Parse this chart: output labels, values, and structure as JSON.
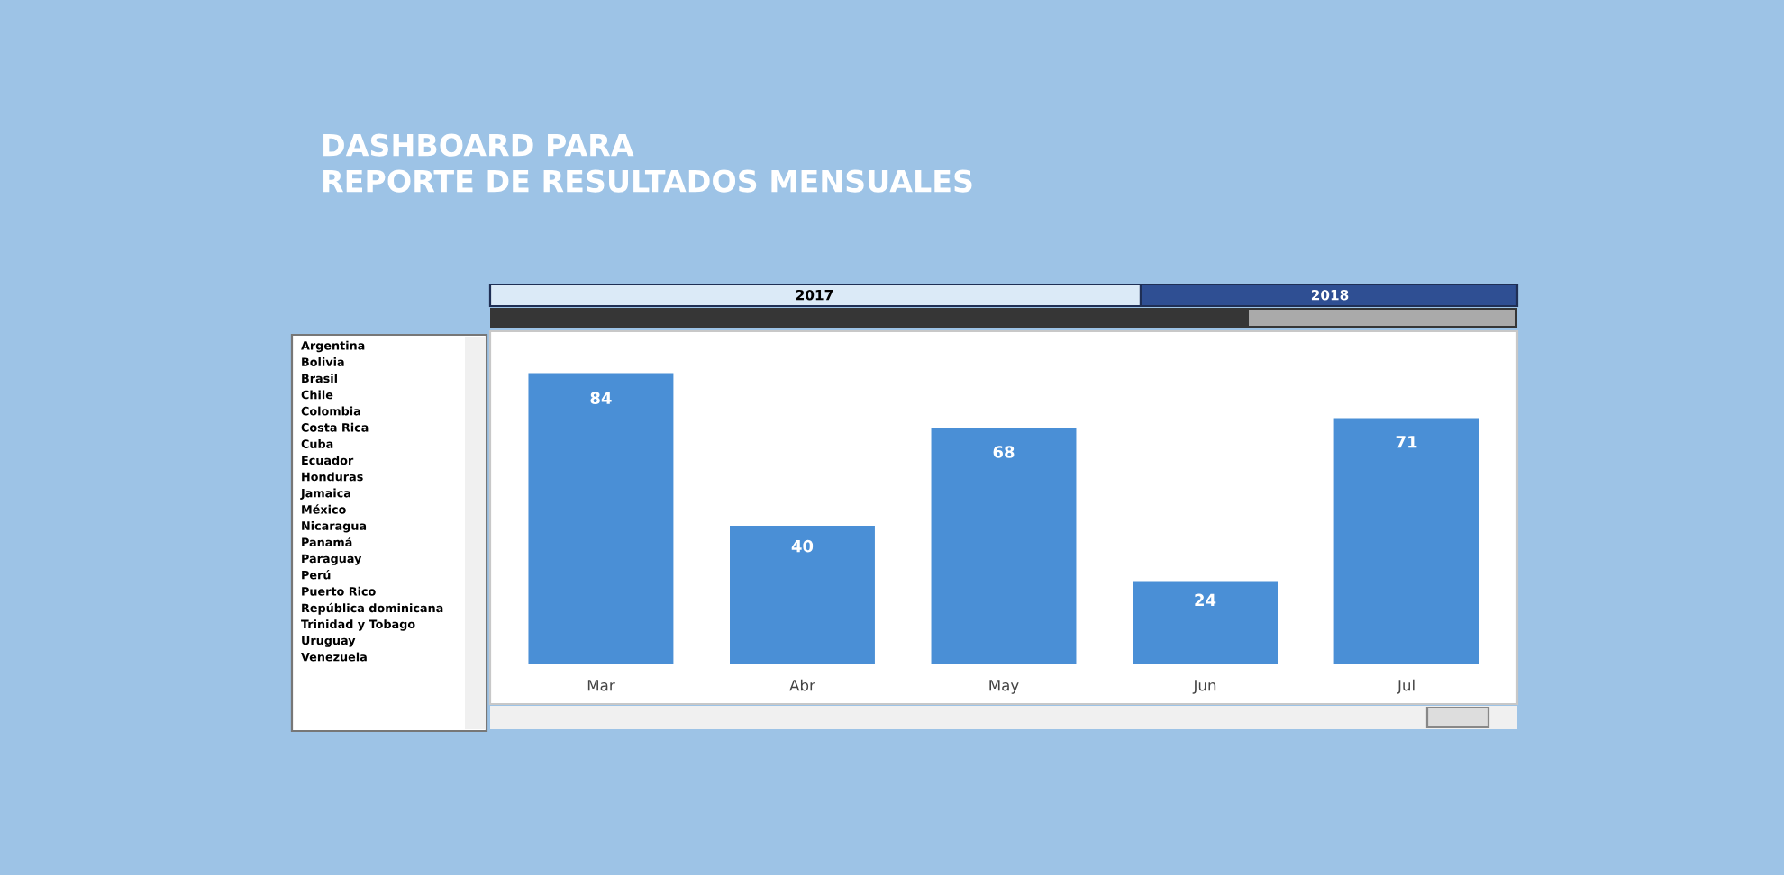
{
  "chart_data": {
    "type": "bar",
    "title": "DASHBOARD PARA\nREPORTE DE RESULTADOS MENSUALES",
    "categories": [
      "Mar",
      "Abr",
      "May",
      "Jun",
      "Jul"
    ],
    "values": [
      84,
      40,
      68,
      24,
      71
    ],
    "color": "#4a8fd6",
    "data_labels": true,
    "ylim": [
      0,
      95
    ],
    "tick_labels": "x",
    "grid": false,
    "annotations": [
      "2017",
      "2018",
      "Argentina",
      "Bolivia",
      "Brasil",
      "Chile",
      "Colombia",
      "Costa Rica",
      "Cuba",
      "Ecuador",
      "Honduras",
      "Jamaica",
      "México",
      "Nicaragua",
      "Panamá",
      "Paraguay",
      "Perú",
      "Puerto Rico",
      "República dominicana",
      "Trinidad y Tobago",
      "Uruguay",
      "Venezuela"
    ]
  }
}
